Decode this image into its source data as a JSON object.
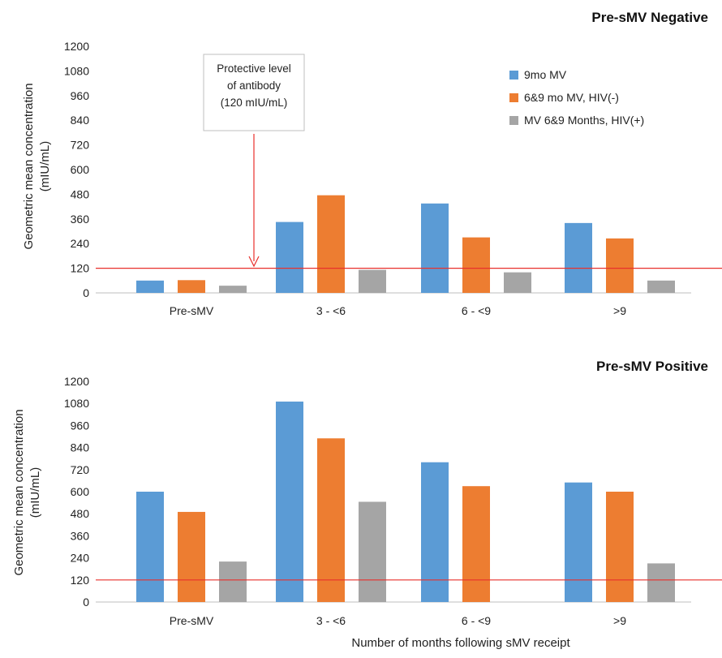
{
  "chart_data": [
    {
      "type": "bar",
      "title": "Pre-sMV Negative",
      "ylabel": "Geometric mean concentration (mIU/mL)",
      "xlabel": "",
      "categories": [
        "Pre-sMV",
        "3 - <6",
        "6 - <9",
        ">9"
      ],
      "ylim": [
        0,
        1200
      ],
      "yticks": [
        0,
        120,
        240,
        360,
        480,
        600,
        720,
        840,
        960,
        1080,
        1200
      ],
      "reference_line": 120,
      "legend": {
        "placement": "top-right"
      },
      "series": [
        {
          "name": "9mo MV",
          "color": "#5b9bd5",
          "values": [
            60,
            345,
            435,
            340
          ]
        },
        {
          "name": "6&9 mo MV, HIV(-)",
          "color": "#ed7d31",
          "values": [
            62,
            475,
            270,
            265
          ]
        },
        {
          "name": "MV 6&9 Months, HIV(+)",
          "color": "#a5a5a5",
          "values": [
            35,
            112,
            100,
            60
          ]
        }
      ],
      "annotation": {
        "lines": [
          "Protective level",
          "of antibody",
          "(120 mIU/mL)"
        ],
        "arrow_color": "#e8302c"
      }
    },
    {
      "type": "bar",
      "title": "Pre-sMV Positive",
      "ylabel": "Geometric mean concentration (mIU/mL)",
      "xlabel": "Number of months following sMV receipt",
      "categories": [
        "Pre-sMV",
        "3 - <6",
        "6 - <9",
        ">9"
      ],
      "ylim": [
        0,
        1200
      ],
      "yticks": [
        0,
        120,
        240,
        360,
        480,
        600,
        720,
        840,
        960,
        1080,
        1200
      ],
      "reference_line": 120,
      "series": [
        {
          "name": "9mo MV",
          "color": "#5b9bd5",
          "values": [
            600,
            1090,
            760,
            650
          ]
        },
        {
          "name": "6&9 mo MV, HIV(-)",
          "color": "#ed7d31",
          "values": [
            490,
            890,
            630,
            600
          ]
        },
        {
          "name": "MV 6&9 Months, HIV(+)",
          "color": "#a5a5a5",
          "values": [
            220,
            545,
            0,
            210
          ]
        }
      ]
    }
  ],
  "colors": {
    "reference_line": "#e8302c",
    "axis": "#bfbfbf"
  }
}
